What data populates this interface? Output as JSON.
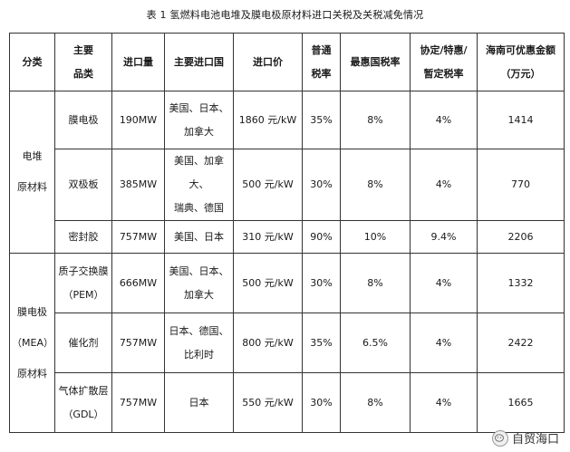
{
  "caption": "表 1  氢燃料电池电堆及膜电极原材料进口关税及关税减免情况",
  "headers": {
    "category": "分类",
    "product": [
      "主要",
      "品类"
    ],
    "import_volume": "进口量",
    "import_countries": "主要进口国",
    "import_price": "进口价",
    "normal_rate": [
      "普通",
      "税率"
    ],
    "mfn_rate": "最惠国税率",
    "agreement_rate": [
      "协定/特惠/",
      "暂定税率"
    ],
    "hainan_saving": "海南可优惠金额（万元）"
  },
  "groups": [
    {
      "name": [
        "电堆",
        "原材料"
      ],
      "rows": [
        {
          "product": [
            "膜电极"
          ],
          "volume": "190MW",
          "countries": [
            "美国、日本、",
            "加拿大"
          ],
          "price": "1860 元/kW",
          "normal": "35%",
          "mfn": "8%",
          "agreement": "4%",
          "saving": "1414"
        },
        {
          "product": [
            "双极板"
          ],
          "volume": "385MW",
          "countries": [
            "美国、加拿大、",
            "瑞典、德国"
          ],
          "price": "500 元/kW",
          "normal": "30%",
          "mfn": "8%",
          "agreement": "4%",
          "saving": "770"
        },
        {
          "product": [
            "密封胶"
          ],
          "volume": "757MW",
          "countries": [
            "美国、日本"
          ],
          "price": "310 元/kW",
          "normal": "90%",
          "mfn": "10%",
          "agreement": "9.4%",
          "saving": "2206"
        }
      ]
    },
    {
      "name": [
        "膜电极",
        "（MEA）",
        "原材料"
      ],
      "rows": [
        {
          "product": [
            "质子交换膜",
            "（PEM）"
          ],
          "volume": "666MW",
          "countries": [
            "美国、日本、",
            "加拿大"
          ],
          "price": "500 元/kW",
          "normal": "30%",
          "mfn": "8%",
          "agreement": "4%",
          "saving": "1332"
        },
        {
          "product": [
            "催化剂"
          ],
          "volume": "757MW",
          "countries": [
            "日本、德国、",
            "比利时"
          ],
          "price": "800 元/kW",
          "normal": "35%",
          "mfn": "6.5%",
          "agreement": "4%",
          "saving": "2422"
        },
        {
          "product": [
            "气体扩散层",
            "（GDL）"
          ],
          "volume": "757MW",
          "countries": [
            "日本"
          ],
          "price": "550 元/kW",
          "normal": "30%",
          "mfn": "8%",
          "agreement": "4%",
          "saving": "1665"
        }
      ]
    }
  ],
  "watermark": {
    "text": "自贸海口",
    "icon": "wechat-icon"
  }
}
